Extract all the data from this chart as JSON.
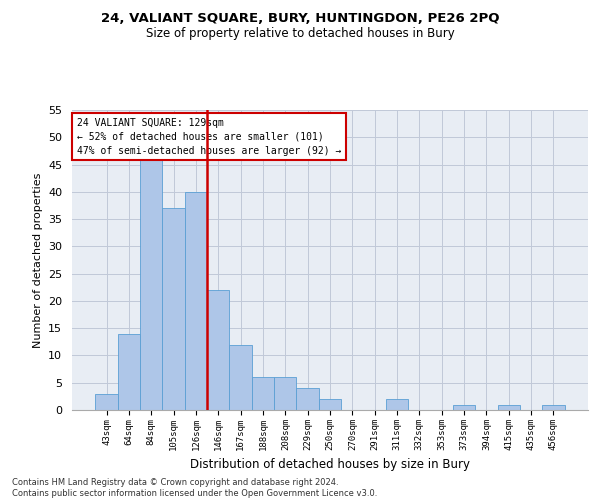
{
  "title1": "24, VALIANT SQUARE, BURY, HUNTINGDON, PE26 2PQ",
  "title2": "Size of property relative to detached houses in Bury",
  "xlabel": "Distribution of detached houses by size in Bury",
  "ylabel": "Number of detached properties",
  "footnote": "Contains HM Land Registry data © Crown copyright and database right 2024.\nContains public sector information licensed under the Open Government Licence v3.0.",
  "annotation_line1": "24 VALIANT SQUARE: 129sqm",
  "annotation_line2": "← 52% of detached houses are smaller (101)",
  "annotation_line3": "47% of semi-detached houses are larger (92) →",
  "bar_categories": [
    "43sqm",
    "64sqm",
    "84sqm",
    "105sqm",
    "126sqm",
    "146sqm",
    "167sqm",
    "188sqm",
    "208sqm",
    "229sqm",
    "250sqm",
    "270sqm",
    "291sqm",
    "311sqm",
    "332sqm",
    "353sqm",
    "373sqm",
    "394sqm",
    "415sqm",
    "435sqm",
    "456sqm"
  ],
  "bar_values": [
    3,
    14,
    46,
    37,
    40,
    22,
    12,
    6,
    6,
    4,
    2,
    0,
    0,
    2,
    0,
    0,
    1,
    0,
    1,
    0,
    1
  ],
  "bar_color": "#aec6e8",
  "bar_edge_color": "#5a9fd4",
  "vline_color": "#cc0000",
  "vline_x": 4.5,
  "annotation_box_color": "#cc0000",
  "ylim": [
    0,
    55
  ],
  "yticks": [
    0,
    5,
    10,
    15,
    20,
    25,
    30,
    35,
    40,
    45,
    50,
    55
  ],
  "grid_color": "#c0c8d8",
  "background_color": "#e8edf4",
  "figsize": [
    6.0,
    5.0
  ],
  "dpi": 100
}
